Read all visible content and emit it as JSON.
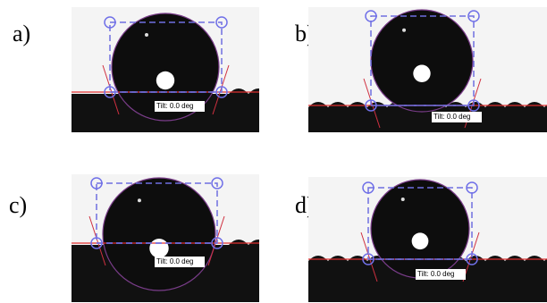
{
  "panels": [
    {
      "label": "a)",
      "tilt": "Tilt: 0.0 deg"
    },
    {
      "label": "b)",
      "tilt": "Tilt: 0.0 deg"
    },
    {
      "label": "c)",
      "tilt": "Tilt: 0.0 deg"
    },
    {
      "label": "d)",
      "tilt": "Tilt: 0.0 deg"
    }
  ]
}
